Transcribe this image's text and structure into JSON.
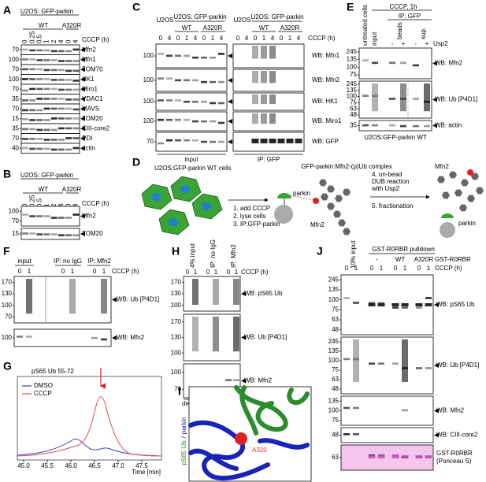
{
  "A": {
    "label": "A",
    "cell_line": "U2OS: GFP-parkin",
    "groups": [
      "WT",
      "A320R"
    ],
    "treatment": "CCCP (h)",
    "lanes": [
      0,
      0.25,
      0.5,
      1,
      2,
      4,
      0,
      4
    ],
    "blots": [
      "Mfn2",
      "Mfn1",
      "TOM70",
      "HK1",
      "Miro1",
      "VDAC1",
      "MAVS",
      "TOM20",
      "CIII-core2",
      "PDI",
      "actin"
    ],
    "mw": [
      [
        70
      ],
      [
        100
      ],
      [
        70
      ],
      [
        100
      ],
      [
        70
      ],
      [
        35
      ],
      [
        70
      ],
      [
        15
      ],
      [
        35
      ],
      [
        70
      ],
      [
        40
      ]
    ]
  },
  "B": {
    "label": "B",
    "cell_line": "U2OS: GFP-parkin",
    "groups": [
      "WT",
      "A320R"
    ],
    "treatment": "CCCP (h)",
    "lanes": [
      0,
      0.25,
      0.5,
      1,
      2,
      4,
      0,
      4
    ],
    "blots": [
      "Mfn2",
      "TOM20"
    ],
    "mw": [
      [
        100,
        70
      ],
      [
        15
      ]
    ]
  },
  "C": {
    "label": "C",
    "treatment": "CCCP (h)",
    "sections": [
      {
        "cells": "U2OS",
        "cell_line": "U2OS: GFP-parkin",
        "groups": [
          "WT",
          "A320R"
        ],
        "lanes": [
          0,
          4,
          0,
          1,
          4,
          0,
          1,
          4
        ],
        "title": "input"
      },
      {
        "cells": "U2OS",
        "cell_line": "U2OS: GFP-parkin",
        "groups": [
          "WT",
          "A320R"
        ],
        "lanes": [
          0,
          4,
          0,
          1,
          4,
          0,
          1,
          4
        ],
        "title": "IP: GFP"
      }
    ],
    "blots": [
      "WB: Mfn1",
      "WB: Mfn2",
      "WB: HK1",
      "WB: Miro1",
      "WB: GFP"
    ],
    "mw": [
      [
        100
      ],
      [
        100
      ],
      [
        100
      ],
      [
        100
      ],
      [
        70
      ]
    ]
  },
  "D": {
    "label": "D",
    "cells": "U2OS:GFP-parkin WT cells",
    "steps": [
      "1. add CCCP",
      "2. lyse cells",
      "3. IP:GFP-parkin"
    ],
    "complex": "GFP-parkin:Mfn2-(p)Ub complex",
    "parkin": "parkin",
    "mfn2": "Mfn2",
    "steps2": [
      "4. on-bead",
      "DUB reaction",
      "with Usp2",
      "5. fractionation"
    ],
    "mfn2_out": "Mfn2",
    "parkin_out": "parkin"
  },
  "E": {
    "label": "E",
    "untreated": "untreated cells",
    "treatment": "CCCP, 1h",
    "input": "input",
    "ip": "IP: GFP",
    "fractions": [
      "beads",
      "sup."
    ],
    "usp2": [
      "-",
      "+",
      "-",
      "+"
    ],
    "usp2_label": "Usp2",
    "blots": [
      "WB: Mfn2",
      "WB: Ub [P4D1]",
      "WB: actin"
    ],
    "mw": [
      [
        245,
        135,
        100,
        75
      ],
      [
        245,
        135,
        100,
        75,
        63,
        48
      ],
      [
        35
      ]
    ],
    "cell_line": "U2OS:GFP-parkin WT"
  },
  "F": {
    "label": "F",
    "sections": [
      "input",
      "IP: no IgG",
      "IP: Mfn2"
    ],
    "lanes": [
      0,
      1,
      0,
      1,
      0,
      1
    ],
    "treatment": "CCCP (h)",
    "blots": [
      "WB: Ub [P4D1]",
      "WB: Mfn2"
    ],
    "mw": [
      [
        170,
        130,
        100,
        70
      ],
      [
        100
      ]
    ]
  },
  "G": {
    "label": "G",
    "title": "pS65 Ub 55-72",
    "legend": [
      "DMSO",
      "CCCP"
    ],
    "xticks": [
      "45.0",
      "45.5",
      "46.0",
      "46.5",
      "47.0",
      "47.5"
    ],
    "xlabel": "Time [min]"
  },
  "H": {
    "label": "H",
    "sections": [
      "4% input",
      "IP: no IgG",
      "IP: Mfn2"
    ],
    "lanes": [
      0,
      1,
      0,
      1,
      0,
      1
    ],
    "treatment": "CCCP (h)",
    "blots": [
      "WB: pS65 Ub",
      "WB: Ub [P4D1]",
      "WB: Mfn2"
    ],
    "mw": [
      [
        170,
        130,
        100
      ],
      [
        170,
        130,
        100
      ],
      [
        100,
        70
      ]
    ],
    "note": "denaturing conditions"
  },
  "I": {
    "label": "I",
    "ub": "pS65 Ub",
    "slash": "/",
    "parkin": "parkin",
    "residue": "A320"
  },
  "J": {
    "label": "J",
    "input": "10% input",
    "pulldown": "GST-R0RBR pulldown",
    "constructs": [
      "-",
      "WT",
      "A320R"
    ],
    "construct_label": "GST-R0RBR",
    "lanes": [
      0,
      1,
      0,
      1,
      0,
      1,
      0,
      1
    ],
    "treatment": "CCCP (h)",
    "blots": [
      "WB: pS65 Ub",
      "WB: Ub [P4D1]",
      "WB: Mfn2",
      "WB: CIII-core2"
    ],
    "ponceau": [
      "GST-R0RBR",
      "(Ponceau S)"
    ],
    "mw": [
      [
        245,
        135,
        100,
        75,
        63,
        48
      ],
      [
        245,
        135,
        100,
        75,
        63,
        48
      ],
      [
        135,
        100,
        75
      ],
      [
        48
      ],
      [
        63
      ]
    ]
  }
}
